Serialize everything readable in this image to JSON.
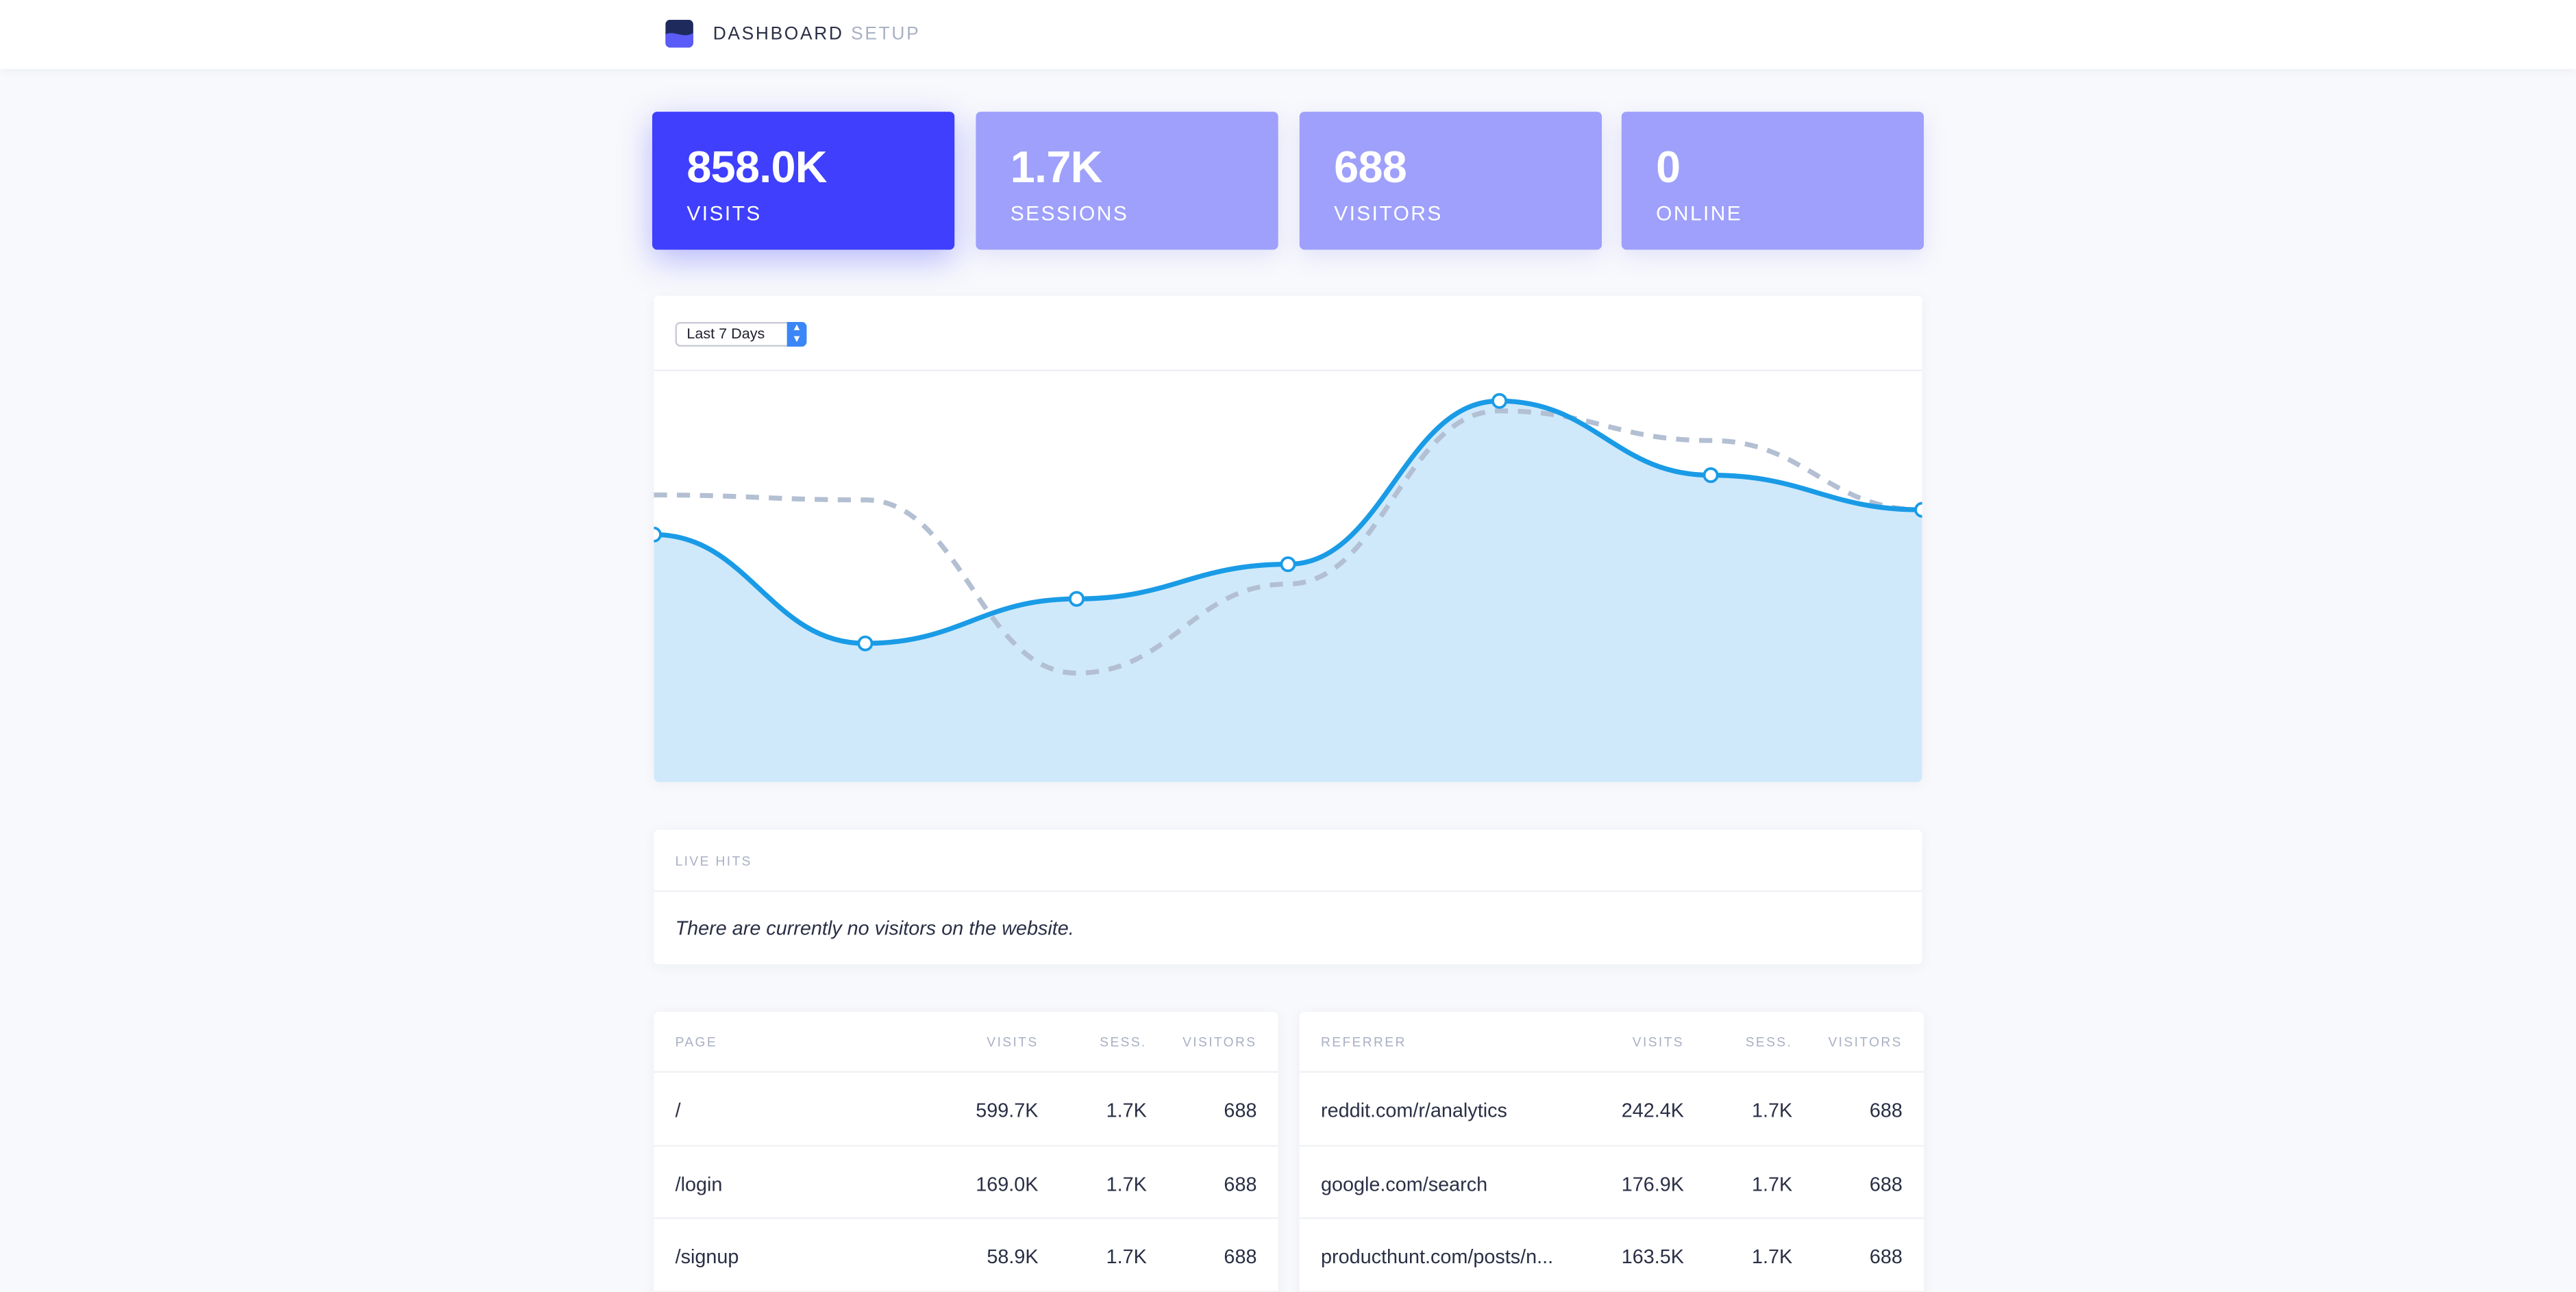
{
  "nav": {
    "items": [
      "DASHBOARD",
      "SETUP"
    ]
  },
  "stats": [
    {
      "value": "858.0K",
      "label": "VISITS"
    },
    {
      "value": "1.7K",
      "label": "SESSIONS"
    },
    {
      "value": "688",
      "label": "VISITORS"
    },
    {
      "value": "0",
      "label": "ONLINE"
    }
  ],
  "chart": {
    "range_label": "Last 7 Days"
  },
  "chart_data": {
    "type": "area",
    "x": [
      1,
      2,
      3,
      4,
      5,
      6,
      7
    ],
    "series": [
      {
        "values": [
          100,
          78,
          87,
          94,
          127,
          112,
          105
        ]
      },
      {
        "values": [
          108,
          107,
          72,
          90,
          125,
          119,
          105
        ]
      }
    ],
    "ylim": [
      50,
      133
    ],
    "grid": false,
    "colors": {
      "current": "#1a9be6",
      "fill": "#cfe9fb",
      "previous": "#b3bfd2"
    }
  },
  "live": {
    "title": "LIVE HITS",
    "message": "There are currently no visitors on the website."
  },
  "pages": {
    "headers": [
      "PAGE",
      "VISITS",
      "SESS.",
      "VISITORS"
    ],
    "rows": [
      [
        "/",
        "599.7K",
        "1.7K",
        "688"
      ],
      [
        "/login",
        "169.0K",
        "1.7K",
        "688"
      ],
      [
        "/signup",
        "58.9K",
        "1.7K",
        "688"
      ]
    ]
  },
  "referrers": {
    "headers": [
      "REFERRER",
      "VISITS",
      "SESS.",
      "VISITORS"
    ],
    "rows": [
      [
        "reddit.com/r/analytics",
        "242.4K",
        "1.7K",
        "688"
      ],
      [
        "google.com/search",
        "176.9K",
        "1.7K",
        "688"
      ],
      [
        "producthunt.com/posts/n...",
        "163.5K",
        "1.7K",
        "688"
      ]
    ]
  }
}
